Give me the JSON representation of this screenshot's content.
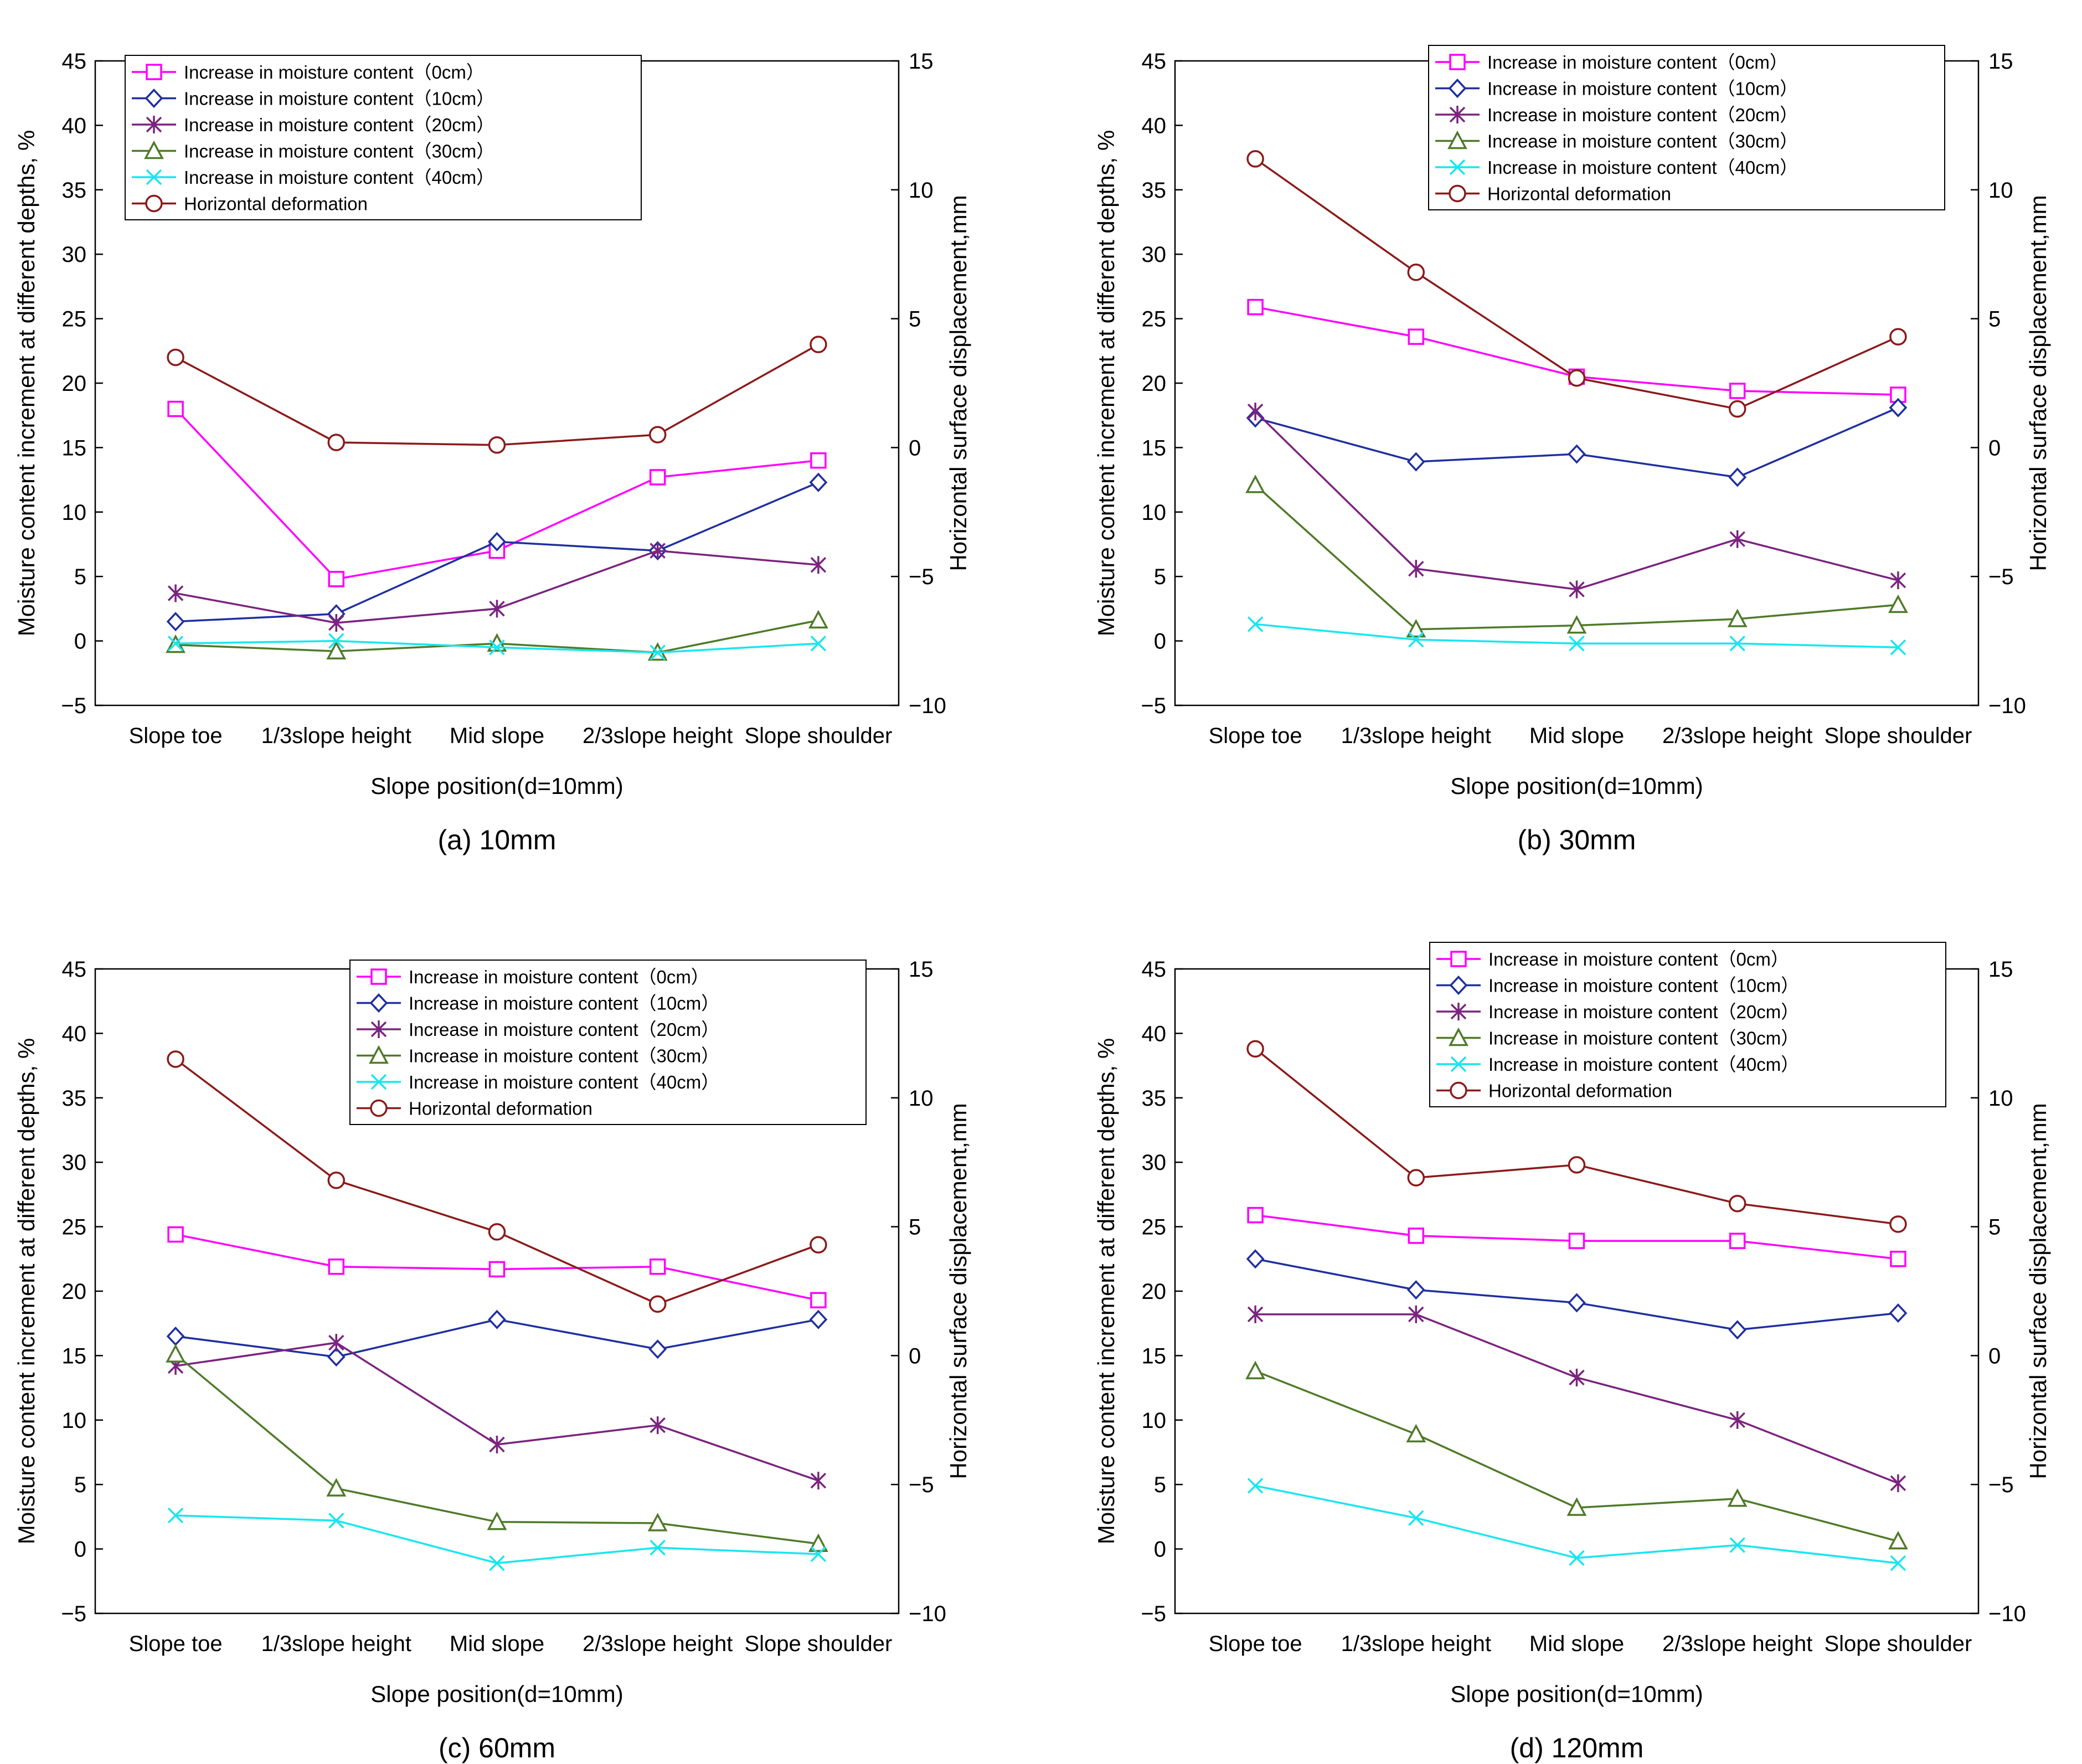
{
  "figure": {
    "colors": {
      "m0": "#ff00ff",
      "m10": "#1f2fa0",
      "m20": "#7b237f",
      "m30": "#4f7a28",
      "m40": "#18e6f0",
      "hd": "#8b1a1a"
    }
  },
  "chart_data": [
    {
      "type": "line",
      "caption": "(a) 10mm",
      "xlabel": "Slope position(d=10mm)",
      "ylabel_left": "Moisture content increment at different depths, %",
      "ylabel_right": "Horizontal surface displacement,mm",
      "categories": [
        "Slope toe",
        "1/3slope height",
        "Mid slope",
        "2/3slope height",
        "Slope shoulder"
      ],
      "ylim_left": [
        -5,
        45
      ],
      "yticks_left": [
        "−5",
        "0",
        "5",
        "10",
        "15",
        "20",
        "25",
        "30",
        "35",
        "40",
        "45"
      ],
      "ylim_right": [
        -10,
        15
      ],
      "yticks_right": [
        "−10",
        "−5",
        "0",
        "5",
        "10",
        "15"
      ],
      "legend_position": "top-left",
      "series": [
        {
          "key": "m0",
          "name": "Increase in moisture content（0cm）",
          "axis": "left",
          "marker": "square",
          "values": [
            18.0,
            4.8,
            7.0,
            12.7,
            14.0
          ]
        },
        {
          "key": "m10",
          "name": "Increase in moisture content（10cm）",
          "axis": "left",
          "marker": "diamond",
          "values": [
            1.5,
            2.1,
            7.7,
            7.0,
            12.3
          ]
        },
        {
          "key": "m20",
          "name": "Increase in moisture content（20cm）",
          "axis": "left",
          "marker": "star",
          "values": [
            3.7,
            1.4,
            2.5,
            7.0,
            5.9
          ]
        },
        {
          "key": "m30",
          "name": "Increase in moisture content（30cm）",
          "axis": "left",
          "marker": "triangle",
          "values": [
            -0.3,
            -0.8,
            -0.2,
            -0.9,
            1.6
          ]
        },
        {
          "key": "m40",
          "name": "Increase in moisture content（40cm）",
          "axis": "left",
          "marker": "x",
          "values": [
            -0.2,
            0.0,
            -0.5,
            -0.9,
            -0.2
          ]
        },
        {
          "key": "hd",
          "name": "Horizontal deformation",
          "axis": "right",
          "marker": "circle",
          "values": [
            3.5,
            0.2,
            0.1,
            0.5,
            4.0
          ]
        }
      ]
    },
    {
      "type": "line",
      "caption": "(b) 30mm",
      "xlabel": "Slope position(d=10mm)",
      "ylabel_left": "Moisture content increment at different depths, %",
      "ylabel_right": "Horizontal surface displacement,mm",
      "categories": [
        "Slope toe",
        "1/3slope height",
        "Mid slope",
        "2/3slope height",
        "Slope shoulder"
      ],
      "ylim_left": [
        -5,
        45
      ],
      "yticks_left": [
        "−5",
        "0",
        "5",
        "10",
        "15",
        "20",
        "25",
        "30",
        "35",
        "40",
        "45"
      ],
      "ylim_right": [
        -10,
        15
      ],
      "yticks_right": [
        "−10",
        "−5",
        "0",
        "5",
        "10",
        "15"
      ],
      "legend_position": "top-right",
      "series": [
        {
          "key": "m0",
          "name": "Increase in moisture content（0cm）",
          "axis": "left",
          "marker": "square",
          "values": [
            25.9,
            23.6,
            20.5,
            19.4,
            19.1
          ]
        },
        {
          "key": "m10",
          "name": "Increase in moisture content（10cm）",
          "axis": "left",
          "marker": "diamond",
          "values": [
            17.3,
            13.9,
            14.5,
            12.7,
            18.1
          ]
        },
        {
          "key": "m20",
          "name": "Increase in moisture content（20cm）",
          "axis": "left",
          "marker": "star",
          "values": [
            17.8,
            5.6,
            4.0,
            7.9,
            4.7
          ]
        },
        {
          "key": "m30",
          "name": "Increase in moisture content（30cm）",
          "axis": "left",
          "marker": "triangle",
          "values": [
            12.1,
            0.9,
            1.2,
            1.7,
            2.8
          ]
        },
        {
          "key": "m40",
          "name": "Increase in moisture content（40cm）",
          "axis": "left",
          "marker": "x",
          "values": [
            1.3,
            0.1,
            -0.2,
            -0.2,
            -0.5
          ]
        },
        {
          "key": "hd",
          "name": "Horizontal deformation",
          "axis": "right",
          "marker": "circle",
          "values": [
            11.2,
            6.8,
            2.7,
            1.5,
            4.3
          ]
        }
      ]
    },
    {
      "type": "line",
      "caption": "(c) 60mm",
      "xlabel": "Slope position(d=10mm)",
      "ylabel_left": "Moisture content increment at different depths, %",
      "ylabel_right": "Horizontal surface displacement,mm",
      "categories": [
        "Slope toe",
        "1/3slope height",
        "Mid slope",
        "2/3slope height",
        "Slope shoulder"
      ],
      "ylim_left": [
        -5,
        45
      ],
      "yticks_left": [
        "−5",
        "0",
        "5",
        "10",
        "15",
        "20",
        "25",
        "30",
        "35",
        "40",
        "45"
      ],
      "ylim_right": [
        -10,
        15
      ],
      "yticks_right": [
        "−10",
        "−5",
        "0",
        "5",
        "10",
        "15"
      ],
      "legend_position": "top-right",
      "series": [
        {
          "key": "m0",
          "name": "Increase in moisture content（0cm）",
          "axis": "left",
          "marker": "square",
          "values": [
            24.4,
            21.9,
            21.7,
            21.9,
            19.3
          ]
        },
        {
          "key": "m10",
          "name": "Increase in moisture content（10cm）",
          "axis": "left",
          "marker": "diamond",
          "values": [
            16.5,
            14.9,
            17.8,
            15.5,
            17.8
          ]
        },
        {
          "key": "m20",
          "name": "Increase in moisture content（20cm）",
          "axis": "left",
          "marker": "star",
          "values": [
            14.2,
            16.0,
            8.1,
            9.6,
            5.3
          ]
        },
        {
          "key": "m30",
          "name": "Increase in moisture content（30cm）",
          "axis": "left",
          "marker": "triangle",
          "values": [
            15.1,
            4.7,
            2.1,
            2.0,
            0.4
          ]
        },
        {
          "key": "m40",
          "name": "Increase in moisture content（40cm）",
          "axis": "left",
          "marker": "x",
          "values": [
            2.6,
            2.2,
            -1.1,
            0.1,
            -0.4
          ]
        },
        {
          "key": "hd",
          "name": "Horizontal deformation",
          "axis": "right",
          "marker": "circle",
          "values": [
            11.5,
            6.8,
            4.8,
            2.0,
            4.3
          ]
        }
      ]
    },
    {
      "type": "line",
      "caption": "(d) 120mm",
      "xlabel": "Slope position(d=10mm)",
      "ylabel_left": "Moisture content increment at different depths, %",
      "ylabel_right": "Horizontal surface displacement,mm",
      "categories": [
        "Slope toe",
        "1/3slope height",
        "Mid slope",
        "2/3slope height",
        "Slope shoulder"
      ],
      "ylim_left": [
        -5,
        45
      ],
      "yticks_left": [
        "−5",
        "0",
        "5",
        "10",
        "15",
        "20",
        "25",
        "30",
        "35",
        "40",
        "45"
      ],
      "ylim_right": [
        -10,
        15
      ],
      "yticks_right": [
        "−10",
        "−5",
        "0",
        "5",
        "10",
        "15"
      ],
      "legend_position": "top-right",
      "series": [
        {
          "key": "m0",
          "name": "Increase in moisture content（0cm）",
          "axis": "left",
          "marker": "square",
          "values": [
            25.9,
            24.3,
            23.9,
            23.9,
            22.5
          ]
        },
        {
          "key": "m10",
          "name": "Increase in moisture content（10cm）",
          "axis": "left",
          "marker": "diamond",
          "values": [
            22.5,
            20.1,
            19.1,
            17.0,
            18.3
          ]
        },
        {
          "key": "m20",
          "name": "Increase in moisture content（20cm）",
          "axis": "left",
          "marker": "star",
          "values": [
            18.2,
            18.2,
            13.3,
            10.0,
            5.1
          ]
        },
        {
          "key": "m30",
          "name": "Increase in moisture content（30cm）",
          "axis": "left",
          "marker": "triangle",
          "values": [
            13.8,
            8.9,
            3.2,
            3.9,
            0.6
          ]
        },
        {
          "key": "m40",
          "name": "Increase in moisture content（40cm）",
          "axis": "left",
          "marker": "x",
          "values": [
            4.9,
            2.4,
            -0.7,
            0.3,
            -1.1
          ]
        },
        {
          "key": "hd",
          "name": "Horizontal deformation",
          "axis": "right",
          "marker": "circle",
          "values": [
            11.9,
            6.9,
            7.4,
            5.9,
            5.1
          ]
        }
      ]
    }
  ]
}
